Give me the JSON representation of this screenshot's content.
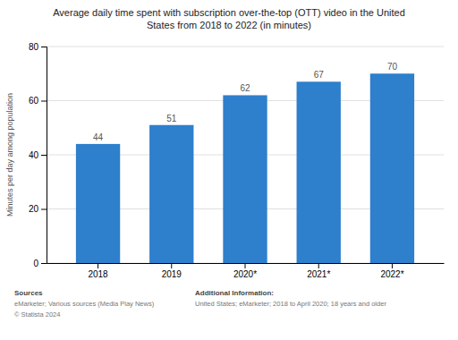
{
  "chart_data": {
    "type": "bar",
    "title": "Average daily time spent with subscription over-the-top (OTT) video in the United\nStates from 2018 to 2022 (in minutes)",
    "categories": [
      "2018",
      "2019",
      "2020*",
      "2021*",
      "2022*"
    ],
    "values": [
      44,
      51,
      62,
      67,
      70
    ],
    "color": "#2E7FCC",
    "ylabel": "Minutes per day among population",
    "ylim": [
      0,
      80
    ],
    "yticks": [
      0,
      20,
      40,
      60,
      80
    ],
    "grid": true,
    "data_labels": true,
    "annotations": [
      "Sources",
      "eMarketer; Various sources (Media Play News)",
      "© Statista 2024",
      "Additional Information:",
      "United States; eMarketer; 2018 to April 2020; 18 years and older"
    ]
  }
}
